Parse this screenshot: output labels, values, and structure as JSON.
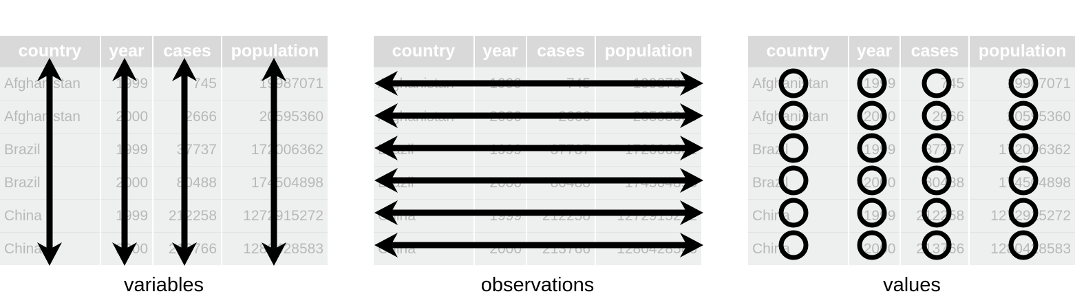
{
  "columns": [
    "country",
    "year",
    "cases",
    "population"
  ],
  "rows": [
    [
      "Afghanistan",
      "1999",
      "745",
      "19987071"
    ],
    [
      "Afghanistan",
      "2000",
      "2666",
      "20595360"
    ],
    [
      "Brazil",
      "1999",
      "37737",
      "172006362"
    ],
    [
      "Brazil",
      "2000",
      "80488",
      "174504898"
    ],
    [
      "China",
      "1999",
      "212258",
      "1272915272"
    ],
    [
      "China",
      "2000",
      "213766",
      "1280428583"
    ]
  ],
  "panels": [
    {
      "caption": "variables"
    },
    {
      "caption": "observations"
    },
    {
      "caption": "values"
    }
  ],
  "colors": {
    "header_bg": "#d9d9d9",
    "cell_bg": "#eef0ef",
    "cell_text": "#b8b8b8",
    "mark": "#000000"
  }
}
